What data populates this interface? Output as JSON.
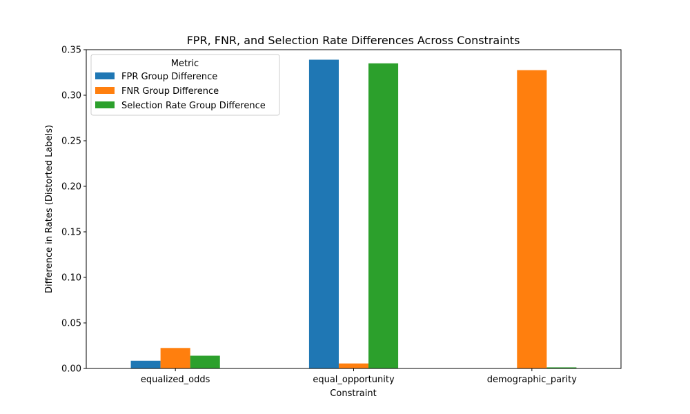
{
  "chart_data": {
    "type": "bar",
    "title": "FPR, FNR, and Selection Rate Differences Across Constraints",
    "xlabel": "Constraint",
    "ylabel": "Difference in Rates (Distorted Labels)",
    "categories": [
      "equalized_odds",
      "equal_opportunity",
      "demographic_parity"
    ],
    "series": [
      {
        "name": "FPR Group Difference",
        "color": "#1f77b4",
        "values": [
          0.0085,
          0.339,
          0.0
        ]
      },
      {
        "name": "FNR Group Difference",
        "color": "#ff7f0e",
        "values": [
          0.0225,
          0.0055,
          0.3275
        ]
      },
      {
        "name": "Selection Rate Group Difference",
        "color": "#2ca02c",
        "values": [
          0.014,
          0.335,
          0.0012
        ]
      }
    ],
    "ylim": [
      0,
      0.35
    ],
    "yticks": [
      "0.00",
      "0.05",
      "0.10",
      "0.15",
      "0.20",
      "0.25",
      "0.30",
      "0.35"
    ],
    "legend": {
      "title": "Metric",
      "position": "top-left"
    },
    "grid": false
  }
}
